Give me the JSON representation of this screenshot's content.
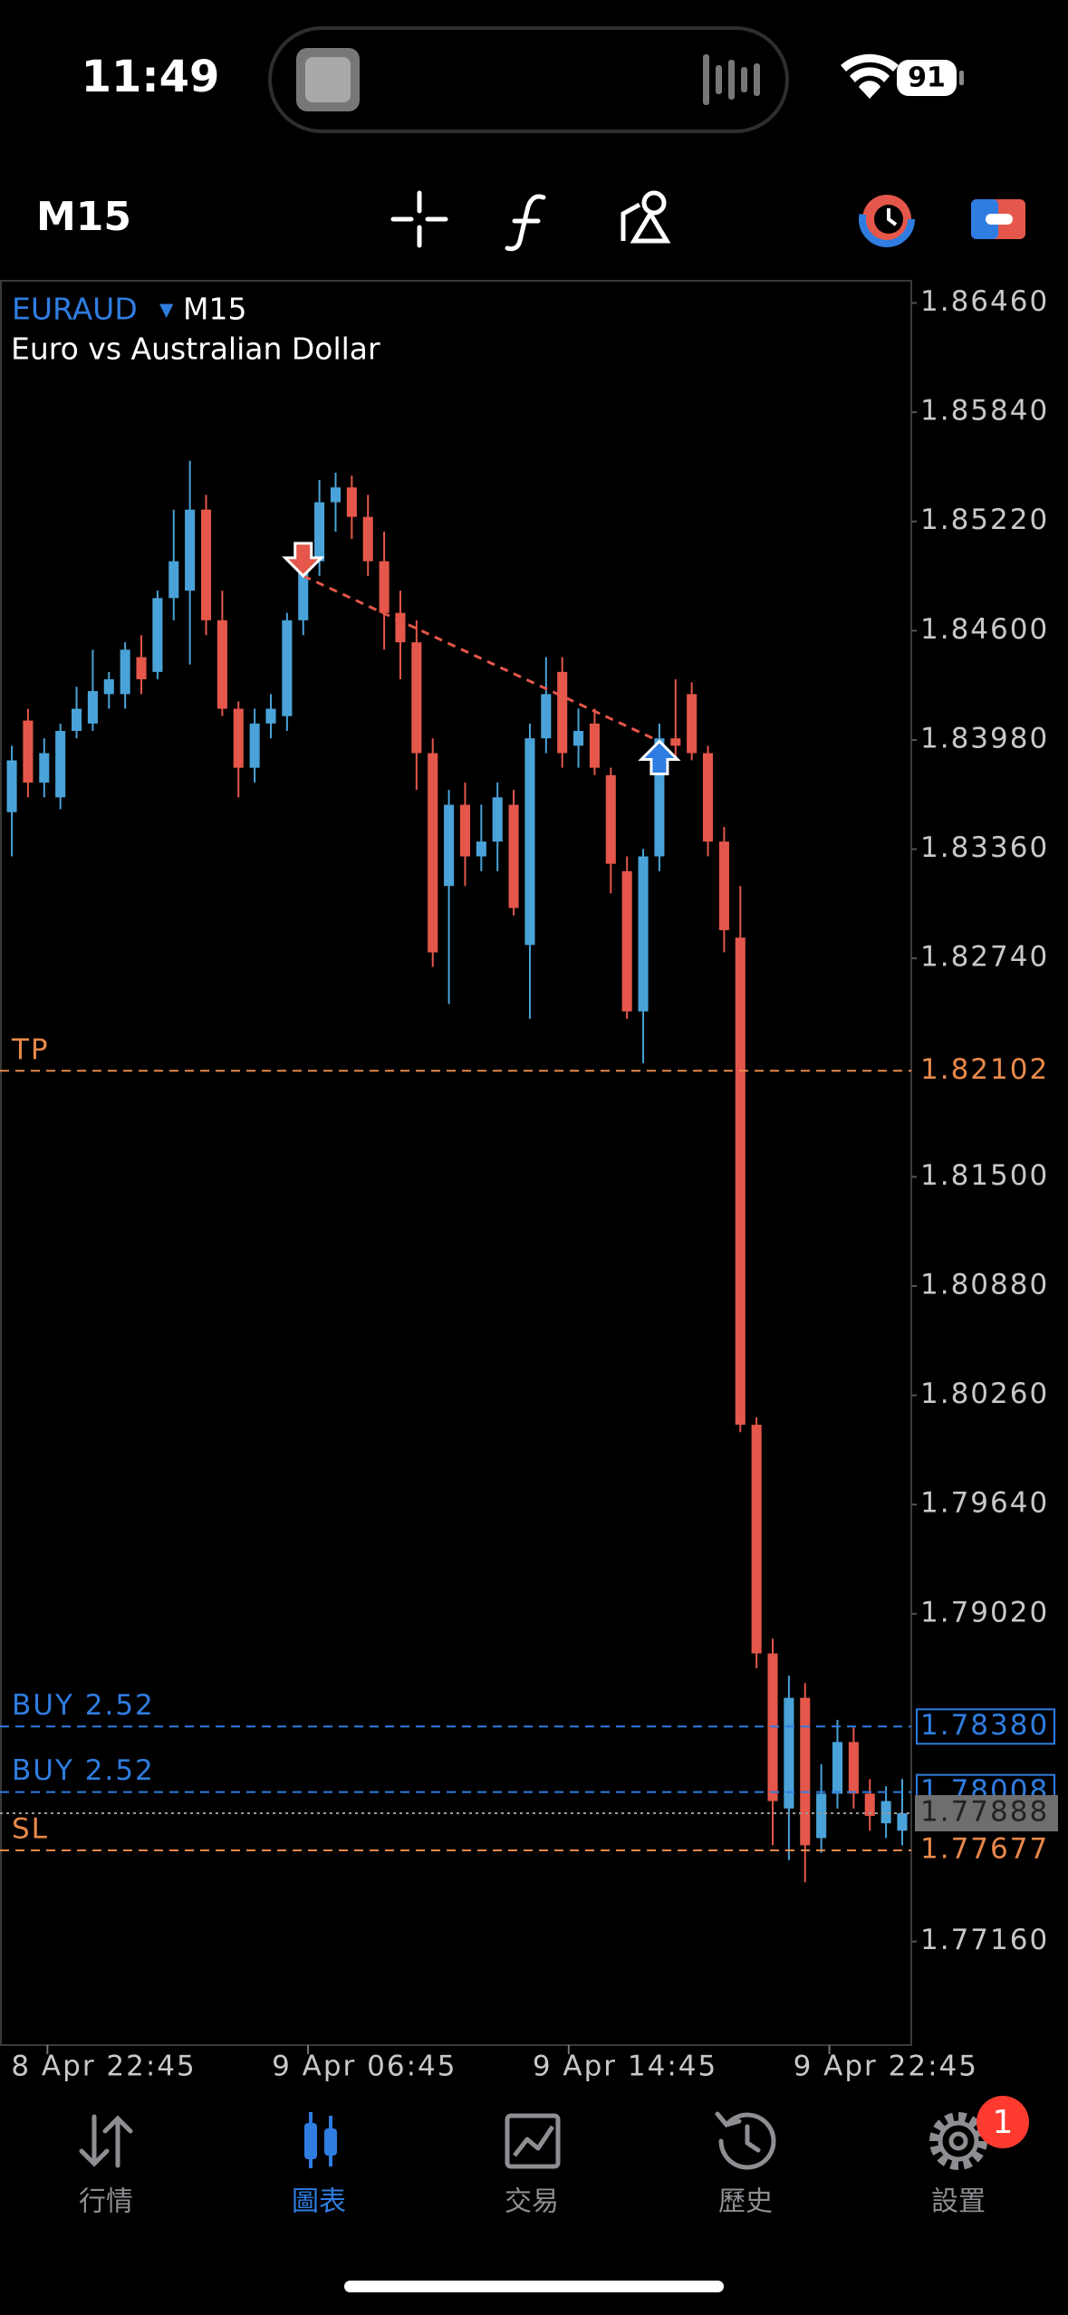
{
  "status_bar": {
    "time": "11:49",
    "battery": 91
  },
  "toolbar": {
    "timeframe": "M15"
  },
  "chart_data": {
    "type": "candlestick",
    "symbol": "EURAUD",
    "timeframe": "M15",
    "description": "Euro vs Australian Dollar",
    "open": [
      1.8357,
      1.8409,
      1.83738,
      1.83654,
      1.84031,
      1.84073,
      1.8424,
      1.8424,
      1.8445,
      1.84366,
      1.84785,
      1.84827,
      1.85287,
      1.84659,
      1.84157,
      1.83822,
      1.84073,
      1.84115,
      1.84659,
      1.84994,
      1.85329,
      1.85413,
      1.85246,
      1.84994,
      1.84701,
      1.84534,
      1.83905,
      1.83151,
      1.83612,
      1.83319,
      1.83403,
      1.83612,
      1.82816,
      1.83989,
      1.84366,
      1.83947,
      1.84073,
      1.8378,
      1.83235,
      1.82439,
      1.83319,
      1.83989,
      1.8424,
      1.83905,
      1.83403,
      1.82858,
      1.80093,
      1.78795,
      1.77915,
      1.78543,
      1.77747,
      1.77999,
      1.78292,
      1.77999,
      1.77831,
      1.77789
    ],
    "high": [
      1.83947,
      1.84157,
      1.83989,
      1.84073,
      1.84282,
      1.84492,
      1.84366,
      1.84534,
      1.84575,
      1.84827,
      1.85287,
      1.85564,
      1.85371,
      1.84827,
      1.84198,
      1.84157,
      1.8424,
      1.84701,
      1.85078,
      1.85455,
      1.85497,
      1.8548,
      1.85371,
      1.85162,
      1.84827,
      1.84659,
      1.83989,
      1.83696,
      1.83738,
      1.83612,
      1.83738,
      1.83696,
      1.84073,
      1.8445,
      1.8445,
      1.84157,
      1.84157,
      1.83822,
      1.83319,
      1.83361,
      1.84073,
      1.84324,
      1.84307,
      1.83947,
      1.83486,
      1.83151,
      1.80135,
      1.78878,
      1.78669,
      1.78627,
      1.78166,
      1.78418,
      1.78376,
      1.78082,
      1.78041,
      1.78082
    ],
    "low": [
      1.83319,
      1.83654,
      1.83654,
      1.83587,
      1.83989,
      1.84031,
      1.84157,
      1.84157,
      1.8424,
      1.84324,
      1.84659,
      1.84408,
      1.84575,
      1.84115,
      1.83654,
      1.83738,
      1.83989,
      1.84031,
      1.84575,
      1.84911,
      1.85162,
      1.8512,
      1.84911,
      1.84492,
      1.84324,
      1.83696,
      1.82691,
      1.82481,
      1.83151,
      1.83235,
      1.83235,
      1.82984,
      1.82397,
      1.83905,
      1.83822,
      1.83822,
      1.8378,
      1.83109,
      1.82397,
      1.82146,
      1.83235,
      1.83864,
      1.83864,
      1.83319,
      1.82774,
      1.80051,
      1.78711,
      1.77706,
      1.77622,
      1.77496,
      1.77664,
      1.77915,
      1.77915,
      1.77789,
      1.77747,
      1.77706
    ],
    "close": [
      1.83864,
      1.83738,
      1.83905,
      1.84031,
      1.84157,
      1.84257,
      1.84324,
      1.84492,
      1.84324,
      1.84785,
      1.84994,
      1.85287,
      1.84659,
      1.84157,
      1.83822,
      1.84073,
      1.84157,
      1.84659,
      1.84952,
      1.85329,
      1.85413,
      1.85246,
      1.84994,
      1.84701,
      1.84534,
      1.83905,
      1.82774,
      1.83612,
      1.83319,
      1.83403,
      1.83654,
      1.83026,
      1.83989,
      1.8424,
      1.83905,
      1.84031,
      1.83822,
      1.83277,
      1.82439,
      1.83319,
      1.83989,
      1.83947,
      1.83905,
      1.83403,
      1.829,
      1.80093,
      1.78795,
      1.77957,
      1.78543,
      1.77706,
      1.77999,
      1.78292,
      1.77999,
      1.77873,
      1.77957,
      1.77888
    ],
    "up_color": "#4aa3d8",
    "down_color": "#e4574a",
    "xlim": [
      -0.73,
      55.56
    ],
    "xticks": [
      {
        "value": 2.2,
        "label": "8 Apr 22:45"
      },
      {
        "value": 18.3,
        "label": "9 Apr 06:45"
      },
      {
        "value": 34.4,
        "label": "9 Apr 14:45"
      },
      {
        "value": 50.5,
        "label": "9 Apr 22:45"
      }
    ],
    "ylim": [
      1.76572,
      1.86586
    ],
    "yticks": [
      {
        "value": 1.8646,
        "label": "1.86460"
      },
      {
        "value": 1.8584,
        "label": "1.85840"
      },
      {
        "value": 1.8522,
        "label": "1.85220"
      },
      {
        "value": 1.846,
        "label": "1.84600"
      },
      {
        "value": 1.8398,
        "label": "1.83980"
      },
      {
        "value": 1.8336,
        "label": "1.83360"
      },
      {
        "value": 1.8274,
        "label": "1.82740"
      },
      {
        "value": 1.815,
        "label": "1.81500"
      },
      {
        "value": 1.8088,
        "label": "1.80880"
      },
      {
        "value": 1.8026,
        "label": "1.80260"
      },
      {
        "value": 1.7964,
        "label": "1.79640"
      },
      {
        "value": 1.7902,
        "label": "1.79020"
      },
      {
        "value": 1.7716,
        "label": "1.77160"
      }
    ],
    "levels": [
      {
        "name": "TP",
        "value": 1.82102,
        "label": "1.82102",
        "color": "#e8894a"
      },
      {
        "name": "BUY 2.52",
        "value": 1.7838,
        "label": "1.78380",
        "color": "#2f7de1",
        "label_border": "#2f7de1"
      },
      {
        "name": "BUY 2.52",
        "value": 1.78008,
        "label": "1.78008",
        "color": "#2f7de1",
        "label_border": "#2f7de1"
      },
      {
        "value": 1.77888,
        "label": "1.77888",
        "color": "#9a9a9a",
        "label_background": "#6e6e6e",
        "label_color": "#222222"
      },
      {
        "name": "SL",
        "value": 1.77677,
        "label": "1.77677",
        "color": "#e8894a"
      }
    ],
    "markers": [
      {
        "x": 18,
        "y": 1.84911,
        "shape": "down",
        "color": "#e4574a"
      },
      {
        "x": 40,
        "y": 1.83972,
        "shape": "up",
        "color": "#2f7de1"
      }
    ],
    "marker_line_color": "#e4574a"
  },
  "tabs": [
    {
      "label": "行情"
    },
    {
      "label": "圖表",
      "active": true
    },
    {
      "label": "交易"
    },
    {
      "label": "歷史"
    },
    {
      "label": "設置",
      "badge": 1
    }
  ]
}
